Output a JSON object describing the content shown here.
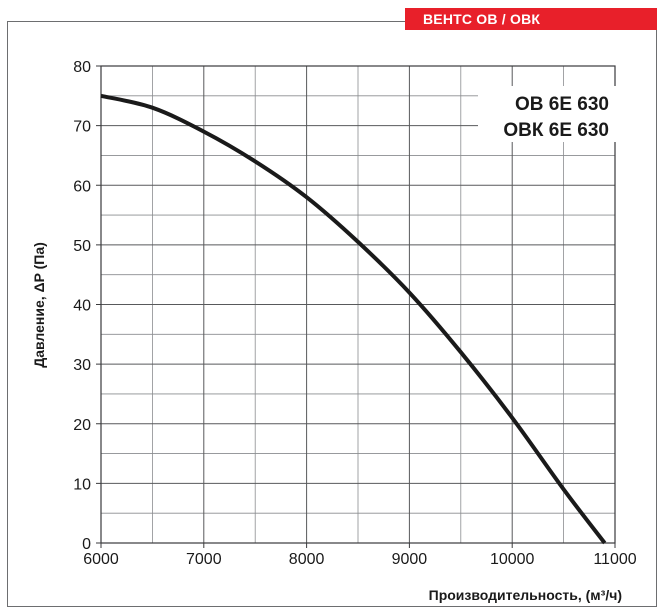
{
  "header": {
    "tab_label": "ВЕНТС ОВ / ОВК"
  },
  "chart_data": {
    "type": "line",
    "xlabel": "Производительность, (м³/ч)",
    "ylabel": "Давление, ΔP (Па)",
    "xlim": [
      6000,
      11000
    ],
    "ylim": [
      0,
      80
    ],
    "x_ticks": [
      6000,
      7000,
      8000,
      9000,
      10000,
      11000
    ],
    "y_ticks": [
      0,
      10,
      20,
      30,
      40,
      50,
      60,
      70,
      80
    ],
    "grid": true,
    "annotations": [
      "ОВ 6Е 630",
      "ОВК 6Е 630"
    ],
    "series": [
      {
        "color": "#1a1a1a",
        "x": [
          6000,
          6500,
          7000,
          7500,
          8000,
          8500,
          9000,
          9500,
          10000,
          10500,
          10900
        ],
        "y": [
          75,
          73,
          69,
          64,
          58,
          50.5,
          42,
          32,
          21,
          9,
          0
        ]
      }
    ]
  }
}
